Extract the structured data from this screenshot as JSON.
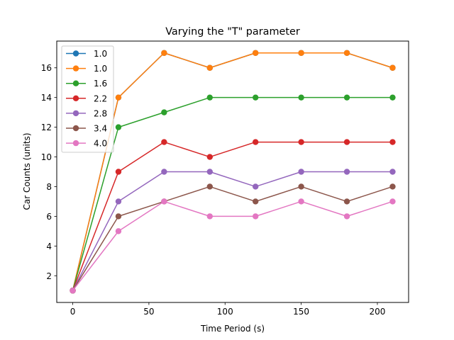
{
  "chart_data": {
    "type": "line",
    "title": "Varying the \"T\" parameter",
    "xlabel": "Time Period (s)",
    "ylabel": "Car Counts (units)",
    "x": [
      0,
      30,
      60,
      90,
      120,
      150,
      180,
      210
    ],
    "xlim": [
      -10.5,
      220.5
    ],
    "ylim": [
      0.2,
      17.8
    ],
    "xticks": [
      0,
      50,
      100,
      150,
      200
    ],
    "yticks": [
      2,
      4,
      6,
      8,
      10,
      12,
      14,
      16
    ],
    "grid": false,
    "legend_position": "top-left",
    "series": [
      {
        "name": "1.0",
        "color": "#1f77b4",
        "values": [
          1,
          14,
          17,
          16,
          17,
          17,
          17,
          16
        ]
      },
      {
        "name": "1.0",
        "color": "#ff7f0e",
        "values": [
          1,
          14,
          17,
          16,
          17,
          17,
          17,
          16
        ]
      },
      {
        "name": "1.6",
        "color": "#2ca02c",
        "values": [
          1,
          12,
          13,
          14,
          14,
          14,
          14,
          14
        ]
      },
      {
        "name": "2.2",
        "color": "#d62728",
        "values": [
          1,
          9,
          11,
          10,
          11,
          11,
          11,
          11
        ]
      },
      {
        "name": "2.8",
        "color": "#9467bd",
        "values": [
          1,
          7,
          9,
          9,
          8,
          9,
          9,
          9
        ]
      },
      {
        "name": "3.4",
        "color": "#8c564b",
        "values": [
          1,
          6,
          7,
          8,
          7,
          8,
          7,
          8
        ]
      },
      {
        "name": "4.0",
        "color": "#e377c2",
        "values": [
          1,
          5,
          7,
          6,
          6,
          7,
          6,
          7
        ]
      }
    ]
  }
}
